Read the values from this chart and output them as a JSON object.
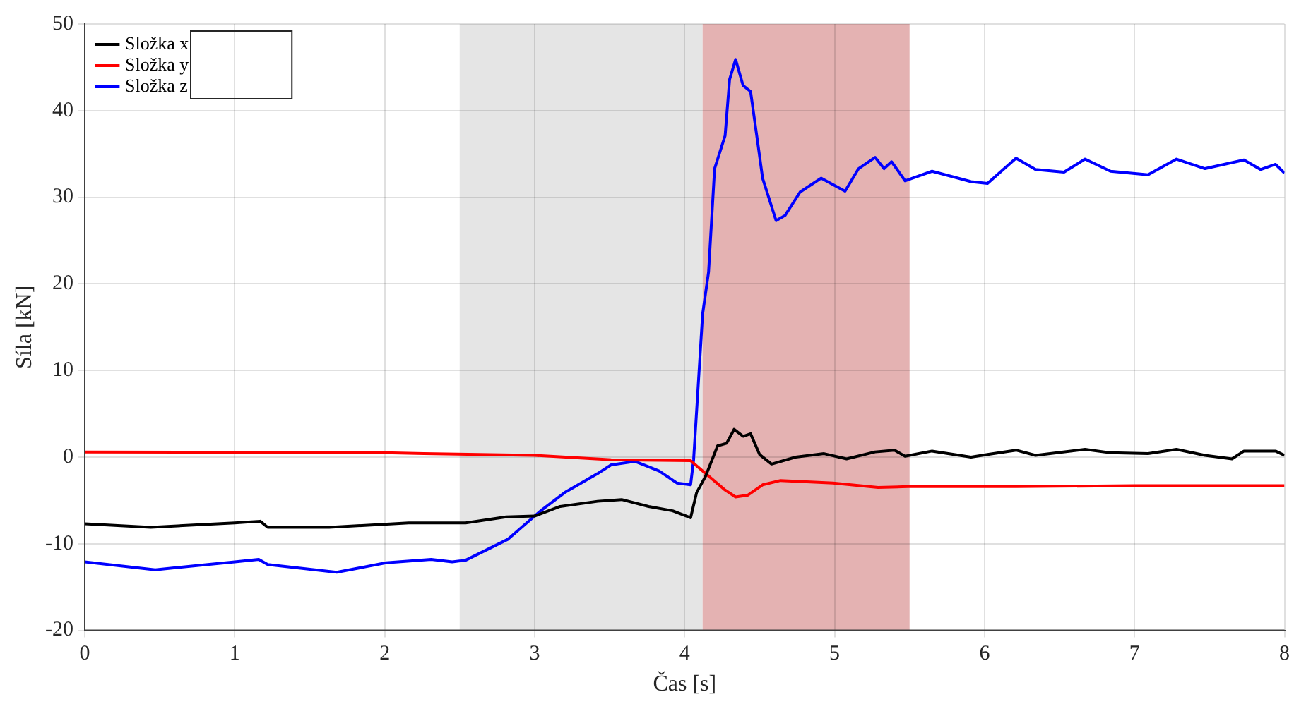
{
  "chart_data": {
    "type": "line",
    "xlabel": "Čas [s]",
    "ylabel": "Síla [kN]",
    "xlim": [
      0,
      8
    ],
    "xticks": [
      0,
      1,
      2,
      3,
      4,
      5,
      6,
      7,
      8
    ],
    "ylim": [
      -20,
      50
    ],
    "yticks": [
      -20,
      -10,
      0,
      10,
      20,
      30,
      40,
      50
    ],
    "grid": true,
    "legend": "top left",
    "marker": "none",
    "line_style": "solid",
    "bands": [
      {
        "axis": "x",
        "from": 2.5,
        "to": 4.12,
        "color": "#e5e5e5"
      },
      {
        "axis": "x",
        "from": 4.12,
        "to": 5.5,
        "color": "#e4b2b2"
      }
    ],
    "series": [
      {
        "name": "Složka x",
        "color": "#000000",
        "x": [
          0,
          0.44,
          1.0,
          1.17,
          1.22,
          1.63,
          2.16,
          2.45,
          2.54,
          2.81,
          3.0,
          3.17,
          3.42,
          3.58,
          3.76,
          3.92,
          4.04,
          4.08,
          4.14,
          4.22,
          4.28,
          4.33,
          4.39,
          4.44,
          4.5,
          4.58,
          4.74,
          4.93,
          5.08,
          5.27,
          5.4,
          5.47,
          5.65,
          5.91,
          6.02,
          6.21,
          6.34,
          6.67,
          6.84,
          7.09,
          7.28,
          7.47,
          7.65,
          7.73,
          7.94,
          8.0
        ],
        "values": [
          -7.7,
          -8.1,
          -7.6,
          -7.4,
          -8.1,
          -8.1,
          -7.6,
          -7.6,
          -7.6,
          -6.9,
          -6.8,
          -5.7,
          -5.1,
          -4.9,
          -5.7,
          -6.2,
          -7.0,
          -4.1,
          -2.2,
          1.3,
          1.6,
          3.2,
          2.4,
          2.7,
          0.3,
          -0.8,
          0,
          0.4,
          -0.2,
          0.6,
          0.8,
          0.1,
          0.7,
          0,
          0.3,
          0.8,
          0.2,
          0.9,
          0.5,
          0.4,
          0.9,
          0.2,
          -0.2,
          0.7,
          0.7,
          0.2
        ]
      },
      {
        "name": "Složka y",
        "color": "#ff0000",
        "x": [
          0,
          2.0,
          2.26,
          3.0,
          3.51,
          4.04,
          4.1,
          4.27,
          4.34,
          4.42,
          4.52,
          4.64,
          4.99,
          5.29,
          5.49,
          6.21,
          7.0,
          8.0
        ],
        "values": [
          0.6,
          0.5,
          0.4,
          0.2,
          -0.3,
          -0.4,
          -1.3,
          -3.8,
          -4.6,
          -4.4,
          -3.2,
          -2.7,
          -3.0,
          -3.5,
          -3.4,
          -3.4,
          -3.3,
          -3.3
        ]
      },
      {
        "name": "Složka z",
        "color": "#0000ff",
        "x": [
          0,
          0.47,
          0.82,
          1.0,
          1.16,
          1.22,
          1.68,
          2.01,
          2.31,
          2.45,
          2.54,
          2.82,
          3.04,
          3.2,
          3.42,
          3.51,
          3.67,
          3.83,
          3.95,
          4.04,
          4.06,
          4.12,
          4.16,
          4.2,
          4.27,
          4.3,
          4.34,
          4.39,
          4.44,
          4.49,
          4.52,
          4.61,
          4.67,
          4.77,
          4.91,
          5.07,
          5.16,
          5.27,
          5.33,
          5.38,
          5.47,
          5.65,
          5.91,
          6.02,
          6.21,
          6.34,
          6.53,
          6.67,
          6.84,
          7.09,
          7.28,
          7.47,
          7.73,
          7.84,
          7.94,
          8.0
        ],
        "values": [
          -12.1,
          -13.0,
          -12.4,
          -12.1,
          -11.8,
          -12.4,
          -13.3,
          -12.2,
          -11.8,
          -12.1,
          -11.9,
          -9.5,
          -6.2,
          -4.1,
          -1.9,
          -0.9,
          -0.5,
          -1.6,
          -3.0,
          -3.2,
          -0.3,
          16.5,
          21.4,
          33.3,
          37.1,
          43.6,
          45.9,
          42.9,
          42.2,
          36.0,
          32.2,
          27.3,
          27.9,
          30.6,
          32.2,
          30.7,
          33.3,
          34.6,
          33.3,
          34.1,
          31.9,
          33.0,
          31.8,
          31.6,
          34.5,
          33.2,
          32.9,
          34.4,
          33.0,
          32.6,
          34.4,
          33.3,
          34.3,
          33.2,
          33.8,
          32.8
        ]
      }
    ]
  }
}
